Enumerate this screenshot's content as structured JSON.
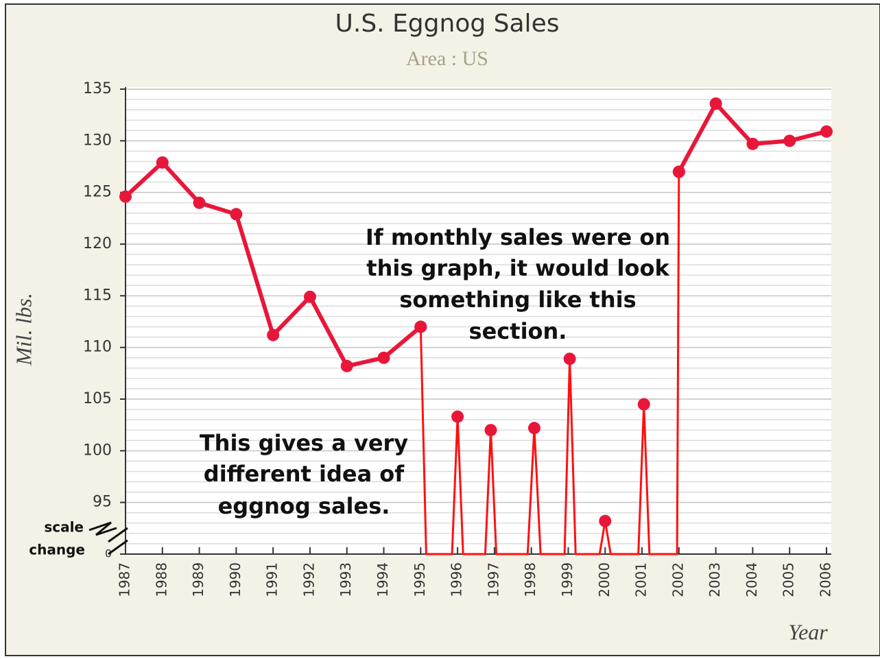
{
  "chart_data": {
    "type": "line",
    "title": "U.S. Eggnog Sales",
    "subtitle": "Area : US",
    "x_label": "Year",
    "y_label": "Mil. lbs.",
    "xlim": [
      1987,
      2006
    ],
    "xticks": [
      1987,
      1988,
      1989,
      1990,
      1991,
      1992,
      1993,
      1994,
      1995,
      1996,
      1997,
      1998,
      1999,
      2000,
      2001,
      2002,
      2003,
      2004,
      2005,
      2006
    ],
    "ylim": [
      0,
      135
    ],
    "yticks": [
      0,
      95,
      100,
      105,
      110,
      115,
      120,
      125,
      130,
      135
    ],
    "axis_break": [
      0,
      90
    ],
    "grid": true,
    "series": [
      {
        "color": "#e8173a",
        "x": [
          1987,
          1988,
          1989,
          1990,
          1991,
          1992,
          1993,
          1994,
          1995,
          1996,
          1997,
          1998,
          1999,
          2000,
          2001,
          2002,
          2003,
          2004,
          2005,
          2006
        ],
        "values": [
          124.6,
          127.9,
          124,
          122.9,
          111.2,
          114.9,
          108.2,
          109,
          112,
          null,
          null,
          null,
          null,
          null,
          null,
          127,
          133.6,
          129.7,
          130,
          130.9
        ]
      },
      {
        "color": "#ff1010",
        "x": [
          1995,
          1995.15,
          1995.85,
          1996,
          1996.15,
          1996.75,
          1996.9,
          1997.05,
          1997.9,
          1998.08,
          1998.25,
          1998.9,
          1999.04,
          1999.2,
          1999.85,
          2000,
          2000.15,
          2000.9,
          2001.05,
          2001.2,
          2001.95,
          2002
        ],
        "values": [
          112,
          0,
          0,
          103.3,
          0,
          0,
          102,
          0,
          0,
          102.2,
          0,
          0,
          108.9,
          0,
          0,
          93.2,
          0,
          0,
          104.5,
          0,
          0,
          127
        ]
      }
    ],
    "annotations": [
      "If monthly sales were on",
      "this graph, it would look",
      "something like this",
      "section.",
      "This gives a very",
      "different idea of",
      "eggnog sales.",
      "scale",
      "change"
    ]
  }
}
